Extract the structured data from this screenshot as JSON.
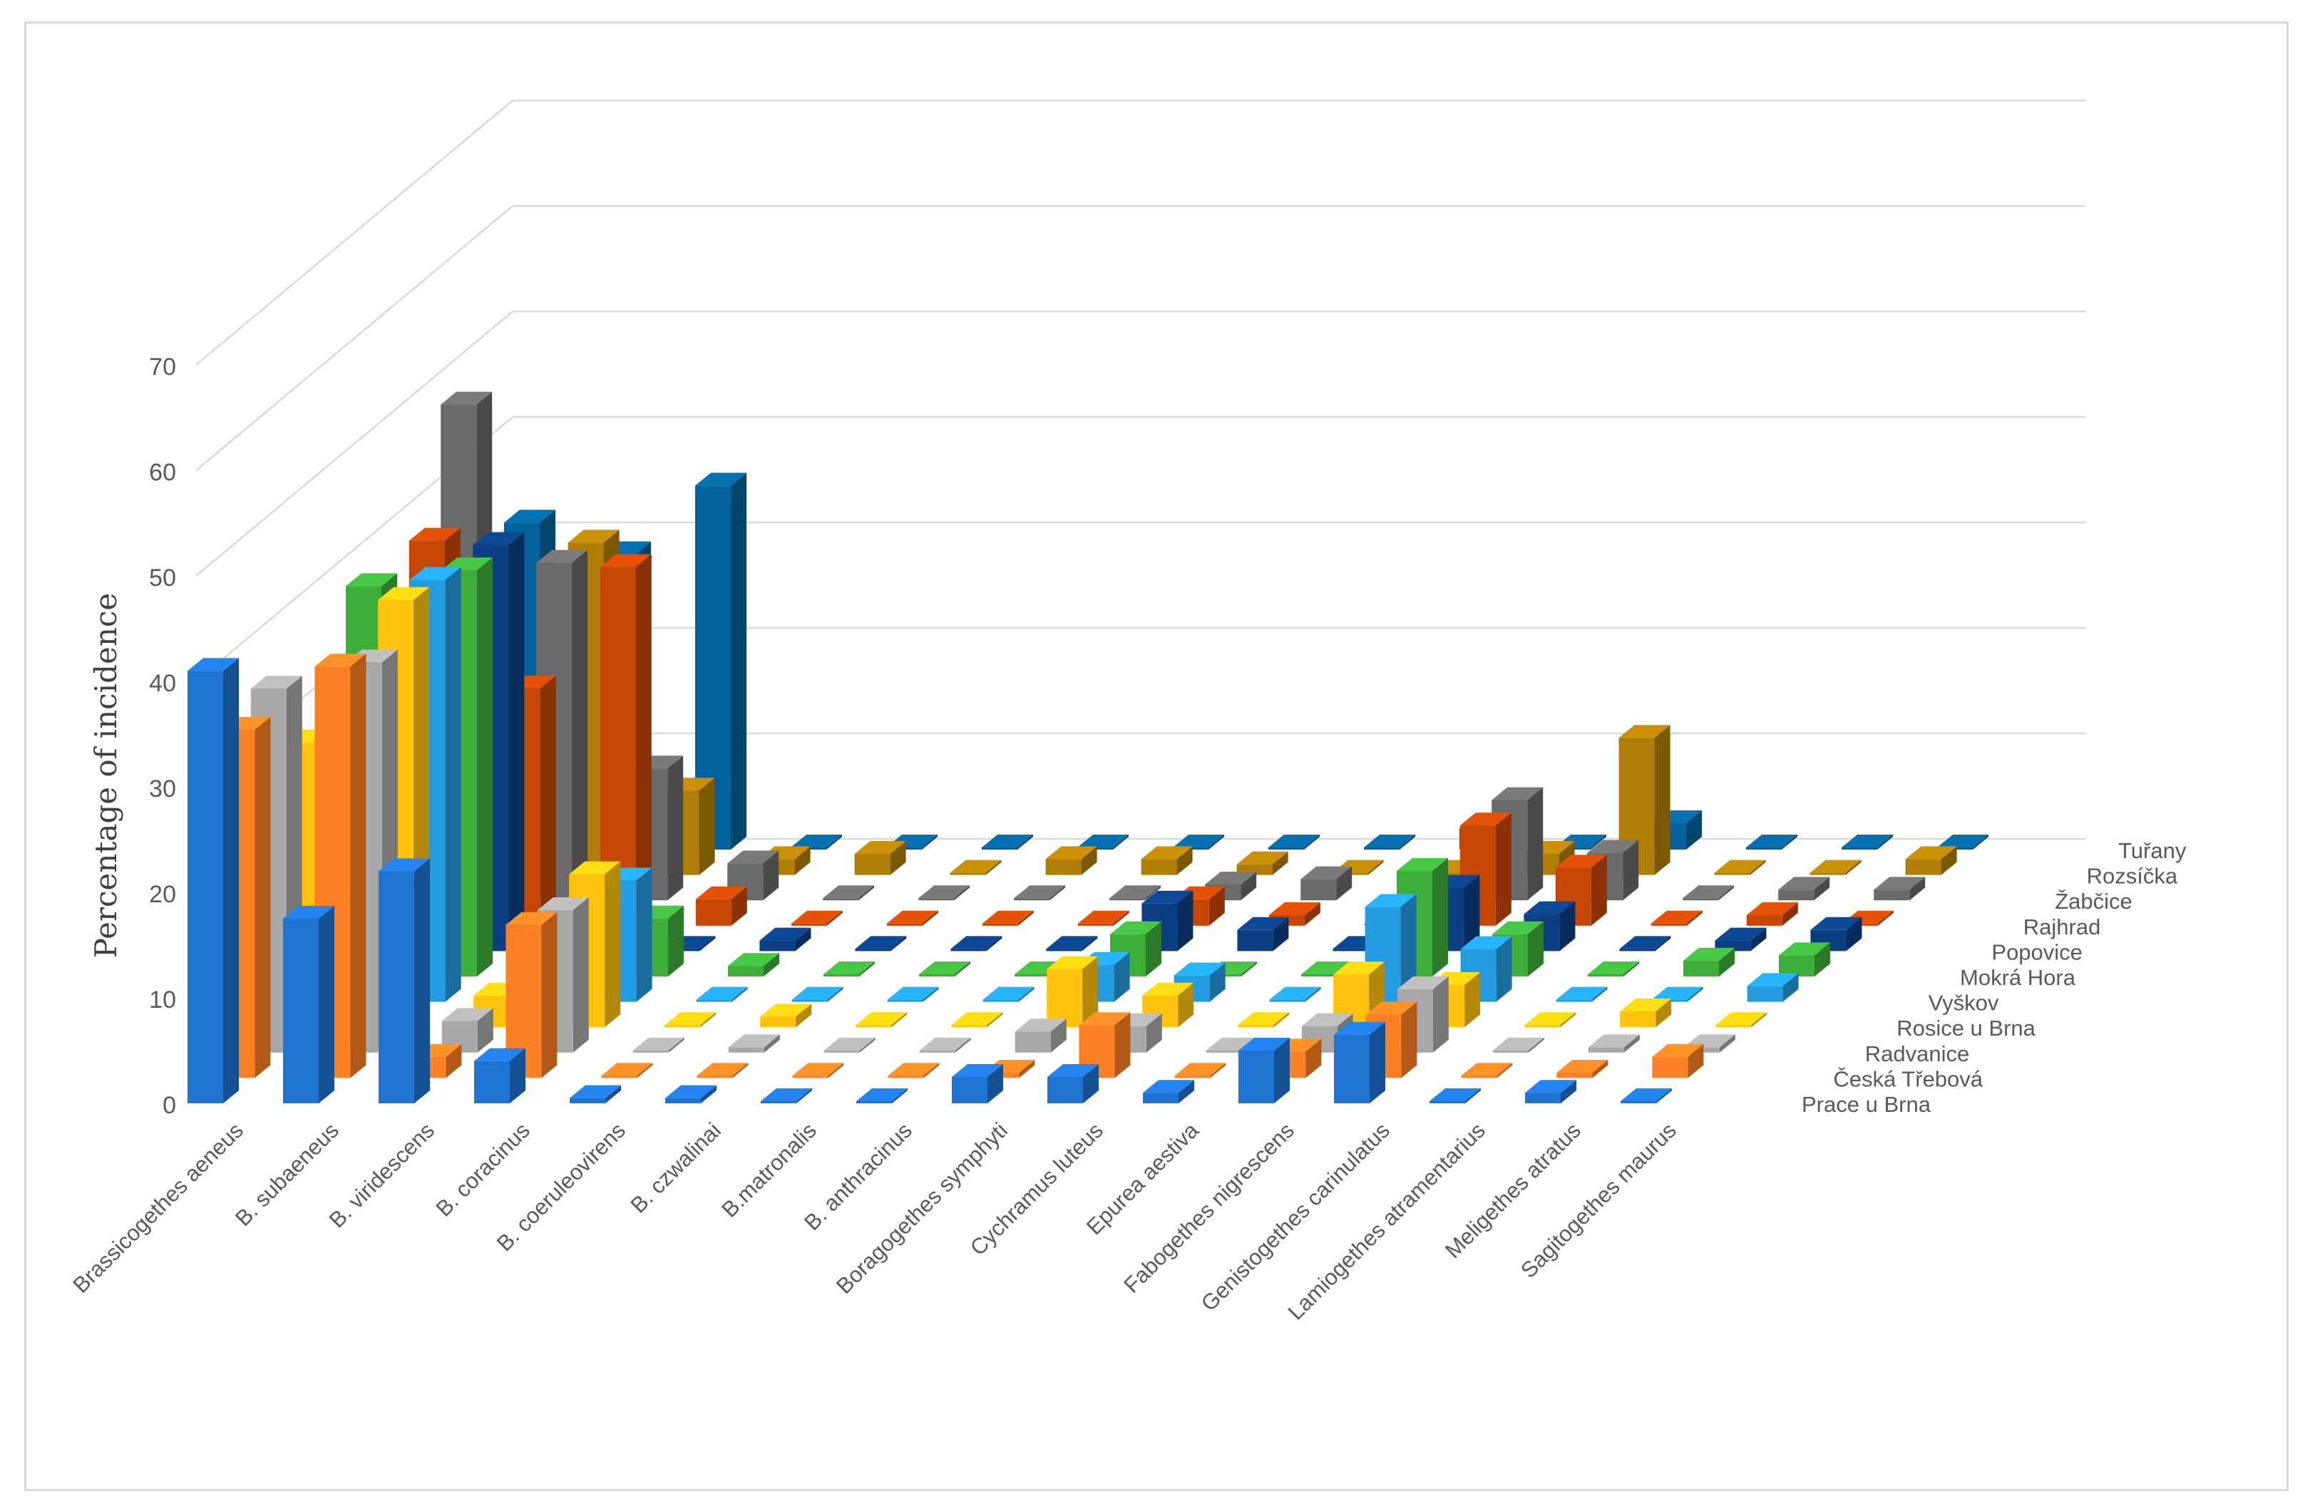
{
  "chart_data": {
    "type": "bar-3d",
    "title": "",
    "ylabel": "Percentage of incidence",
    "xlabel": "",
    "ylim": [
      0,
      70
    ],
    "yticks": [
      0,
      10,
      20,
      30,
      40,
      50,
      60,
      70
    ],
    "grid": true,
    "categories": [
      "Brassicogethes aeneus",
      "B. subaeneus",
      "B. viridescens",
      "B. coracinus",
      "B. coeruleovirens",
      "B. czwalinai",
      "B.matronalis",
      "B. anthracinus",
      "Boragogethes symphyti",
      "Cychramus luteus",
      "Epurea aestiva",
      "Fabogethes nigrescens",
      "Genistogethes carinulatus",
      "Lamiogethes atramentarius",
      "Meligethes atratus",
      "Sagitogethes maurus"
    ],
    "series": [
      {
        "name": "Prace u Brna",
        "color": "#1f74d2",
        "values": [
          41,
          17.5,
          22,
          4,
          0.5,
          0.5,
          0,
          0,
          2.5,
          2.5,
          1,
          5,
          6.5,
          0,
          1,
          0
        ]
      },
      {
        "name": "Česká Třebová",
        "color": "#fb7f24",
        "values": [
          33,
          39,
          2,
          14.5,
          0,
          0,
          0,
          0,
          0.5,
          5,
          0,
          2.5,
          6,
          0,
          0.5,
          2
        ]
      },
      {
        "name": "Radvanice",
        "color": "#a8a8a8",
        "values": [
          34.5,
          37,
          3,
          13.5,
          0,
          0.5,
          0,
          0,
          2,
          2.5,
          0,
          2.5,
          6,
          0,
          0.5,
          0.5
        ]
      },
      {
        "name": "Rosice u Brna",
        "color": "#ffc20f",
        "values": [
          27,
          40.5,
          3,
          14.5,
          0,
          1,
          0,
          0,
          5.5,
          3,
          0,
          5,
          4,
          0,
          1.5,
          0
        ]
      },
      {
        "name": "Vyškov",
        "color": "#239de0",
        "values": [
          0,
          40,
          0,
          11.5,
          0,
          0,
          0,
          0,
          3.5,
          2.5,
          0,
          9,
          5,
          0,
          0,
          1.5
        ]
      },
      {
        "name": "Mokrá Hora",
        "color": "#3eae3b",
        "values": [
          37,
          38.5,
          0,
          5.5,
          1,
          0,
          0,
          0,
          4,
          0,
          0,
          10,
          4,
          0,
          1.5,
          2
        ]
      },
      {
        "name": "Popovice",
        "color": "#0b3f82",
        "values": [
          0,
          38.5,
          0,
          0,
          1,
          0,
          0,
          0,
          4.5,
          2,
          0,
          6,
          3.5,
          0,
          1,
          2
        ]
      },
      {
        "name": "Rajhrad",
        "color": "#c64606",
        "values": [
          36.5,
          22.5,
          34,
          2.5,
          0,
          0,
          0,
          0,
          2.5,
          1,
          0,
          9.5,
          5.5,
          0,
          1,
          0
        ]
      },
      {
        "name": "Žabčice",
        "color": "#6a6a6a",
        "values": [
          47,
          32,
          12.5,
          3.5,
          0,
          0,
          0,
          0,
          1.5,
          2,
          0,
          9.5,
          4.5,
          0,
          1,
          1
        ]
      },
      {
        "name": "Rozsíčka",
        "color": "#b07e06",
        "values": [
          30.5,
          31.5,
          8,
          1.5,
          2,
          0,
          1.5,
          1.5,
          1,
          0,
          0,
          2,
          13,
          0,
          0,
          1.5
        ]
      },
      {
        "name": "Tuřany",
        "color": "#03629b",
        "values": [
          31,
          28,
          34.5,
          0,
          0,
          0,
          0,
          0,
          0,
          0,
          2,
          0,
          2.5,
          0,
          0,
          0
        ]
      }
    ]
  }
}
